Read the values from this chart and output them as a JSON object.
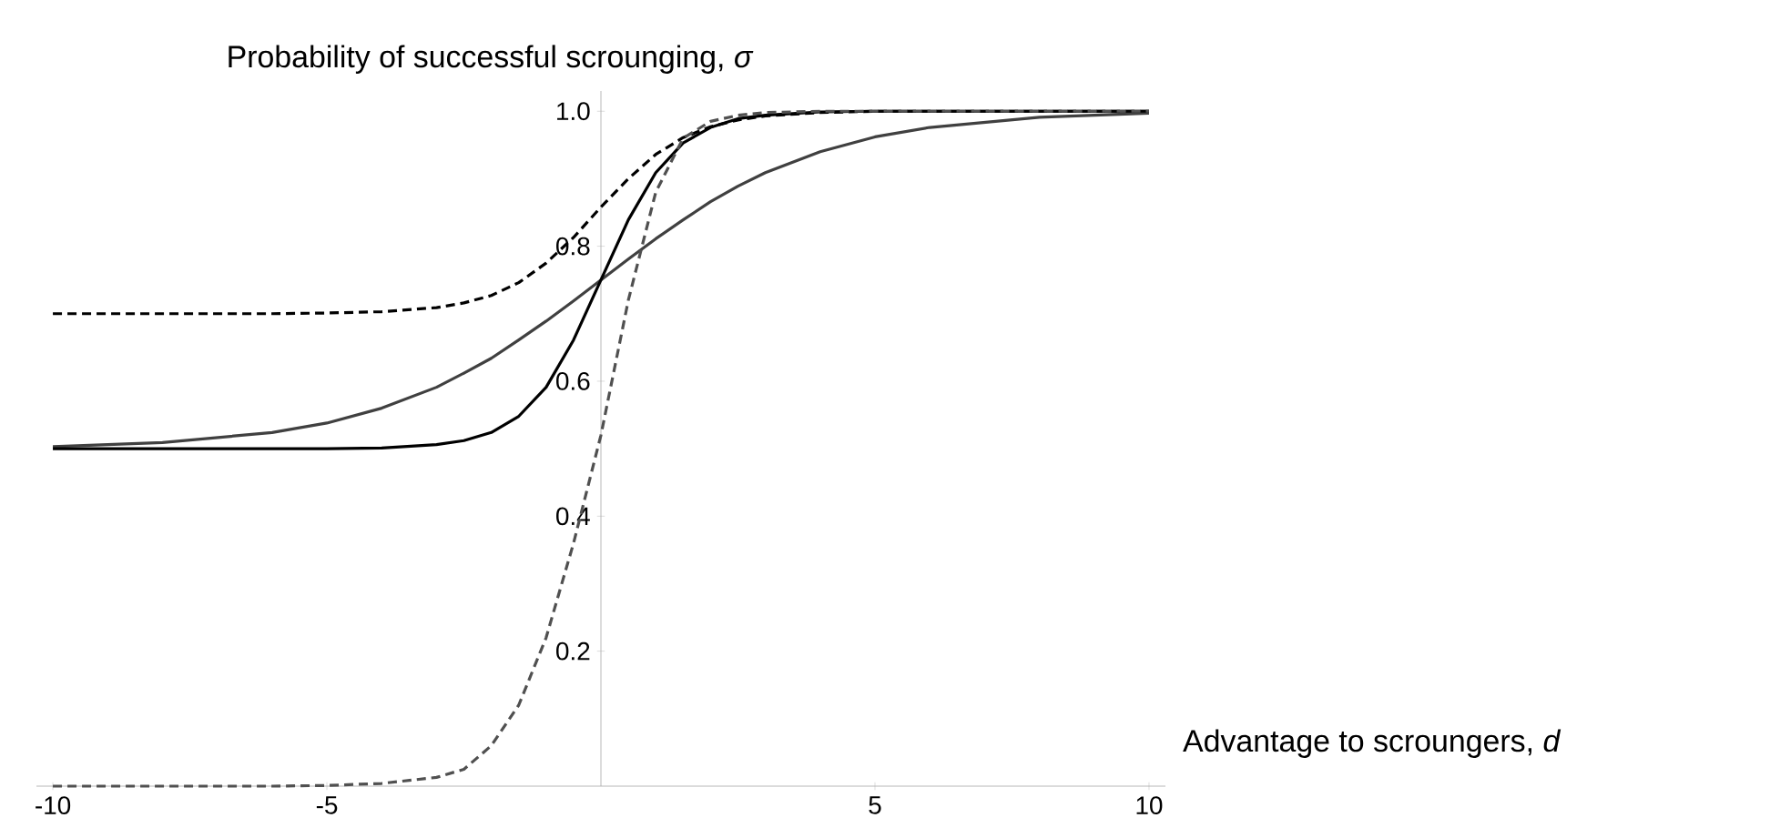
{
  "chart_data": {
    "type": "line",
    "xlabel": "Advantage to scroungers, *d*",
    "ylabel": "Probability of successful scrounging, *σ*",
    "x": [
      -10,
      -8,
      -6,
      -5,
      -4,
      -3,
      -2.5,
      -2,
      -1.5,
      -1,
      -0.5,
      0,
      0.5,
      1,
      1.5,
      2,
      2.5,
      3,
      4,
      5,
      6,
      8,
      10
    ],
    "xlim": [
      -10.3,
      10.3
    ],
    "ylim": [
      0,
      1.03
    ],
    "xticks": [
      -10,
      -5,
      5,
      10
    ],
    "yticks": [
      0.2,
      0.4,
      0.6,
      {
        "value": 0.8,
        "label": "0.8"
      },
      {
        "value": 1,
        "label": "1.0"
      }
    ],
    "marker": "none",
    "grid": false,
    "series": [
      {
        "color": "#000000",
        "line_style": "dashed",
        "values": [
          0.7,
          0.7,
          0.7,
          0.701,
          0.703,
          0.709,
          0.716,
          0.727,
          0.746,
          0.775,
          0.813,
          0.858,
          0.9,
          0.936,
          0.961,
          0.977,
          0.987,
          0.993,
          0.998,
          1,
          1,
          1,
          1
        ]
      },
      {
        "color": "#404040",
        "line_style": "solid",
        "values": [
          0.503,
          0.509,
          0.524,
          0.538,
          0.56,
          0.591,
          0.612,
          0.634,
          0.661,
          0.689,
          0.719,
          0.75,
          0.781,
          0.811,
          0.839,
          0.866,
          0.889,
          0.909,
          0.94,
          0.962,
          0.976,
          0.991,
          0.997
        ]
      },
      {
        "color": "#000000",
        "line_style": "solid",
        "values": [
          0.5,
          0.5,
          0.5,
          0.5,
          0.501,
          0.506,
          0.512,
          0.524,
          0.548,
          0.591,
          0.661,
          0.75,
          0.839,
          0.909,
          0.953,
          0.976,
          0.989,
          0.994,
          0.999,
          1,
          1,
          1,
          1
        ]
      },
      {
        "color": "#505050",
        "line_style": "dashed",
        "values": [
          0,
          0,
          0,
          0.001,
          0.004,
          0.013,
          0.025,
          0.06,
          0.12,
          0.22,
          0.36,
          0.52,
          0.72,
          0.88,
          0.96,
          0.985,
          0.994,
          0.998,
          1,
          1,
          1,
          1,
          1
        ]
      }
    ]
  }
}
